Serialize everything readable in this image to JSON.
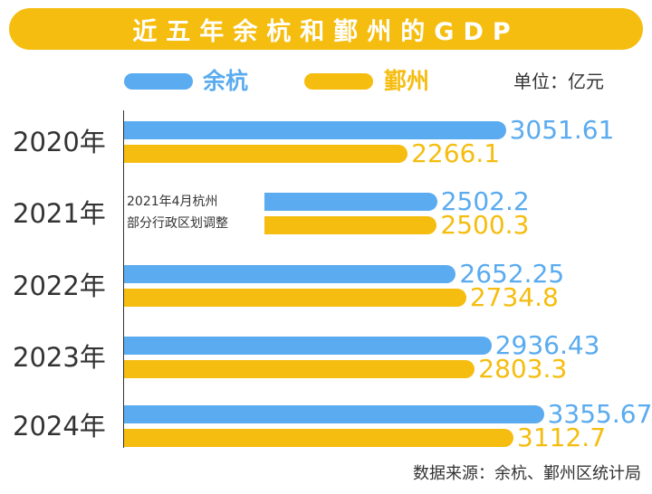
{
  "colors": {
    "yuhang": "#5aabef",
    "yinzhou": "#f5bd0f",
    "title_bg": "#f5bd0f"
  },
  "chart_data": {
    "type": "bar",
    "orientation": "horizontal",
    "title": "近五年余杭和鄞州的GDP",
    "unit": "单位：亿元",
    "categories": [
      "2020年",
      "2021年",
      "2022年",
      "2023年",
      "2024年"
    ],
    "series": [
      {
        "name": "余杭",
        "values": [
          3051.61,
          2502.2,
          2652.25,
          2936.43,
          3355.67
        ],
        "labels": [
          "3051.61",
          "2502.2",
          "2652.25",
          "2936.43",
          "3355.67"
        ]
      },
      {
        "name": "鄞州",
        "values": [
          2266.1,
          2500.3,
          2734.8,
          2803.3,
          3112.7
        ],
        "labels": [
          "2266.1",
          "2500.3",
          "2734.8",
          "2803.3",
          "3112.7"
        ]
      }
    ],
    "xlim": [
      0,
      3800
    ],
    "annotation": {
      "line1": "2021年4月杭州",
      "line2": "部分行政区划调整"
    },
    "source": "数据来源：余杭、鄞州区统计局"
  }
}
